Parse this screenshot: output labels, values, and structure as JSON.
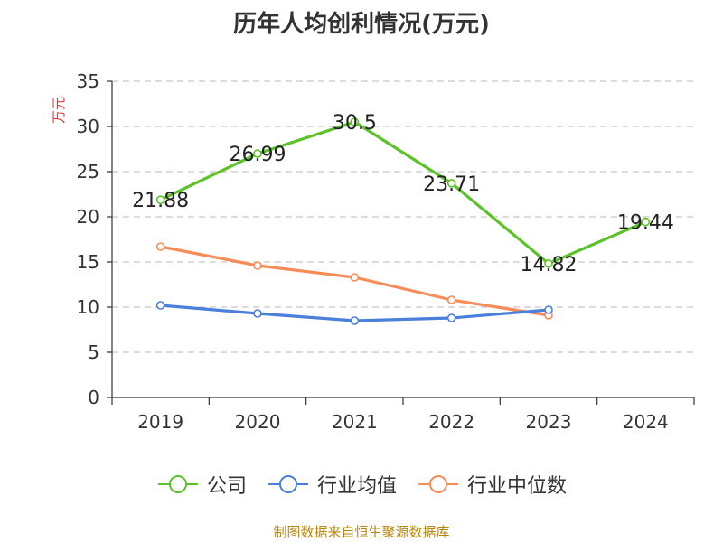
{
  "chart_data": {
    "type": "line",
    "title": "历年人均创利情况(万元)",
    "ylabel": "万元",
    "xlabel": "",
    "categories": [
      "2019",
      "2020",
      "2021",
      "2022",
      "2023",
      "2024"
    ],
    "ylim": [
      0,
      35
    ],
    "yticks": [
      "0",
      "5",
      "10",
      "15",
      "20",
      "25",
      "30",
      "35"
    ],
    "grid": true,
    "legend_position": "bottom",
    "series": [
      {
        "name": "公司",
        "color": "#5bc227",
        "values": [
          21.88,
          26.99,
          30.5,
          23.71,
          14.82,
          19.44
        ],
        "labels": [
          "21.88",
          "26.99",
          "30.5",
          "23.71",
          "14.82",
          "19.44"
        ]
      },
      {
        "name": "行业均值",
        "color": "#4a7fdb",
        "values": [
          10.2,
          9.3,
          8.5,
          8.8,
          9.7,
          null
        ]
      },
      {
        "name": "行业中位数",
        "color": "#f78c59",
        "values": [
          16.7,
          14.6,
          13.3,
          10.8,
          9.1,
          null
        ]
      }
    ]
  },
  "source": "制图数据来自恒生聚源数据库"
}
